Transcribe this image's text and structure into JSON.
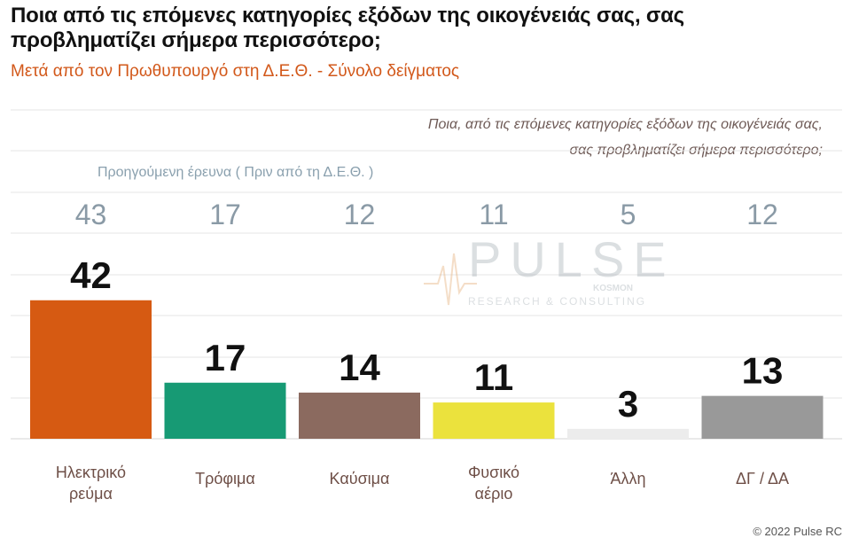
{
  "header": {
    "title": "Ποια από τις επόμενες κατηγορίες εξόδων της οικογένειάς σας, σας προβληματίζει σήμερα περισσότερο;",
    "subtitle": "Μετά από τον Πρωθυπουργό στη Δ.Ε.Θ.  -  Σύνολο δείγματος"
  },
  "question": {
    "line1": "Ποια, από τις επόμενες κατηγορίες εξόδων της οικογένειάς σας,",
    "line2": "σας προβληματίζει σήμερα περισσότερο;"
  },
  "previous_label": "Προηγούμενη έρευνα  ( Πριν από τη Δ.Ε.Θ. )",
  "watermark": {
    "brand": "PULSE",
    "tagline": "RESEARCH & CONSULTING",
    "partner": "KOSMON"
  },
  "footer": {
    "copyright": "© 2022 Pulse RC"
  },
  "colors": {
    "previous_values": "#8a9aa6",
    "subtitle": "#d2581a",
    "grid": "#e6e6e6"
  },
  "chart_data": {
    "type": "bar",
    "title": "Ποια από τις επόμενες κατηγορίες εξόδων της οικογένειάς σας, σας προβληματίζει σήμερα περισσότερο;",
    "categories": [
      [
        "Ηλεκτρικό",
        "ρεύμα"
      ],
      [
        "Τρόφιμα"
      ],
      [
        "Καύσιμα"
      ],
      [
        "Φυσικό",
        "αέριο"
      ],
      [
        "Άλλη"
      ],
      [
        "ΔΓ / ΔΑ"
      ]
    ],
    "values": [
      42,
      17,
      14,
      11,
      3,
      13
    ],
    "previous_values": [
      43,
      17,
      12,
      11,
      5,
      12
    ],
    "bar_colors": [
      "#d65a12",
      "#179a74",
      "#8b6a5f",
      "#ebe23d",
      "#ececec",
      "#999999"
    ],
    "ylim": [
      0,
      50
    ],
    "grid": true,
    "legend": "none"
  }
}
